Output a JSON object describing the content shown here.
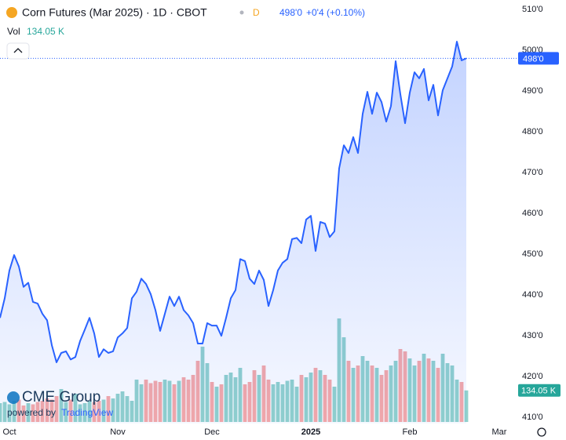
{
  "chart_data": {
    "type": "area",
    "title": "Corn Futures (Mar 2025) · 1D · CBOT",
    "badge": "D",
    "quote": "498'0",
    "change": "+0'4 (+0.10%)",
    "volume_label": "Vol",
    "volume_value": "134.05 K",
    "last_price": "498'0",
    "branding": {
      "logo": "CME Group",
      "powered": "powered by",
      "provider": "TradingView"
    },
    "color": "#2962ff",
    "up_color": "#26a69a",
    "down_color": "#ef5350",
    "categories": [
      null,
      null,
      "Oct",
      null,
      null,
      null,
      null,
      null,
      null,
      null,
      null,
      null,
      null,
      null,
      null,
      null,
      null,
      null,
      null,
      null,
      null,
      null,
      null,
      null,
      null,
      "Nov",
      null,
      null,
      null,
      null,
      null,
      null,
      null,
      null,
      null,
      null,
      null,
      null,
      null,
      null,
      null,
      null,
      null,
      null,
      null,
      "Dec",
      null,
      null,
      null,
      null,
      null,
      null,
      null,
      null,
      null,
      null,
      null,
      null,
      null,
      null,
      null,
      null,
      null,
      null,
      null,
      null,
      "2025",
      null,
      null,
      null,
      null,
      null,
      null,
      null,
      null,
      null,
      null,
      null,
      null,
      null,
      null,
      null,
      null,
      null,
      null,
      null,
      null,
      "Feb",
      null,
      null,
      null,
      null,
      null,
      null,
      null,
      null,
      null,
      null,
      null,
      null,
      null,
      null,
      null,
      null,
      null,
      null,
      "Mar"
    ],
    "values": [
      434.4,
      439.2,
      446,
      449.8,
      447,
      442,
      443,
      438.3,
      437.9,
      435.4,
      433.8,
      427.7,
      423.5,
      425.8,
      426.2,
      424.2,
      424.8,
      428.7,
      431.5,
      434.4,
      430.6,
      424.8,
      426.7,
      425.8,
      426.2,
      429.6,
      430.6,
      431.9,
      439.2,
      440.8,
      444,
      442.7,
      440.2,
      436.3,
      431.2,
      435.4,
      439.6,
      437.3,
      439.6,
      436.3,
      435,
      433.1,
      428.1,
      428.1,
      433.1,
      432.5,
      432.5,
      430,
      434.4,
      439.2,
      441.2,
      448.8,
      448.3,
      444,
      442.7,
      446,
      443.7,
      437.3,
      441.2,
      446,
      447.9,
      448.8,
      453.7,
      454,
      452.7,
      458.5,
      459.4,
      450.8,
      457.9,
      457.5,
      454.2,
      455.6,
      471,
      476.7,
      474.8,
      478.7,
      474.8,
      484.4,
      489.8,
      484.4,
      489.6,
      487.3,
      482.5,
      486.3,
      497.3,
      489.2,
      482.1,
      489.6,
      494.6,
      493.1,
      495.4,
      487.7,
      491.5,
      484,
      490.2,
      493.1,
      496,
      502.1,
      497.5,
      498,
      null,
      null,
      null,
      null,
      null,
      null,
      null
    ],
    "volumes": [
      80,
      85,
      75,
      90,
      95,
      70,
      80,
      75,
      85,
      90,
      100,
      95,
      110,
      140,
      85,
      95,
      120,
      75,
      80,
      90,
      85,
      90,
      95,
      110,
      100,
      120,
      130,
      110,
      90,
      180,
      160,
      180,
      165,
      175,
      170,
      180,
      175,
      160,
      175,
      190,
      180,
      200,
      260,
      320,
      250,
      170,
      150,
      160,
      200,
      210,
      190,
      230,
      160,
      170,
      220,
      200,
      240,
      180,
      160,
      170,
      160,
      175,
      180,
      150,
      200,
      190,
      210,
      230,
      220,
      200,
      180,
      150,
      440,
      360,
      260,
      230,
      240,
      280,
      260,
      240,
      230,
      200,
      220,
      240,
      260,
      310,
      300,
      270,
      240,
      260,
      290,
      270,
      260,
      230,
      290,
      250,
      240,
      180,
      170,
      134.05,
      null,
      null,
      null,
      null,
      null,
      null,
      null
    ],
    "ylim": [
      408.5,
      512.3
    ],
    "yticks": [
      {
        "value": 410,
        "label": "410'0"
      },
      {
        "value": 420,
        "label": "420'0"
      },
      {
        "value": 430,
        "label": "430'0"
      },
      {
        "value": 440,
        "label": "440'0"
      },
      {
        "value": 450,
        "label": "450'0"
      },
      {
        "value": 460,
        "label": "460'0"
      },
      {
        "value": 470,
        "label": "470'0"
      },
      {
        "value": 480,
        "label": "480'0"
      },
      {
        "value": 490,
        "label": "490'0"
      },
      {
        "value": 500,
        "label": "500'0"
      },
      {
        "value": 510,
        "label": "510'0"
      }
    ]
  }
}
